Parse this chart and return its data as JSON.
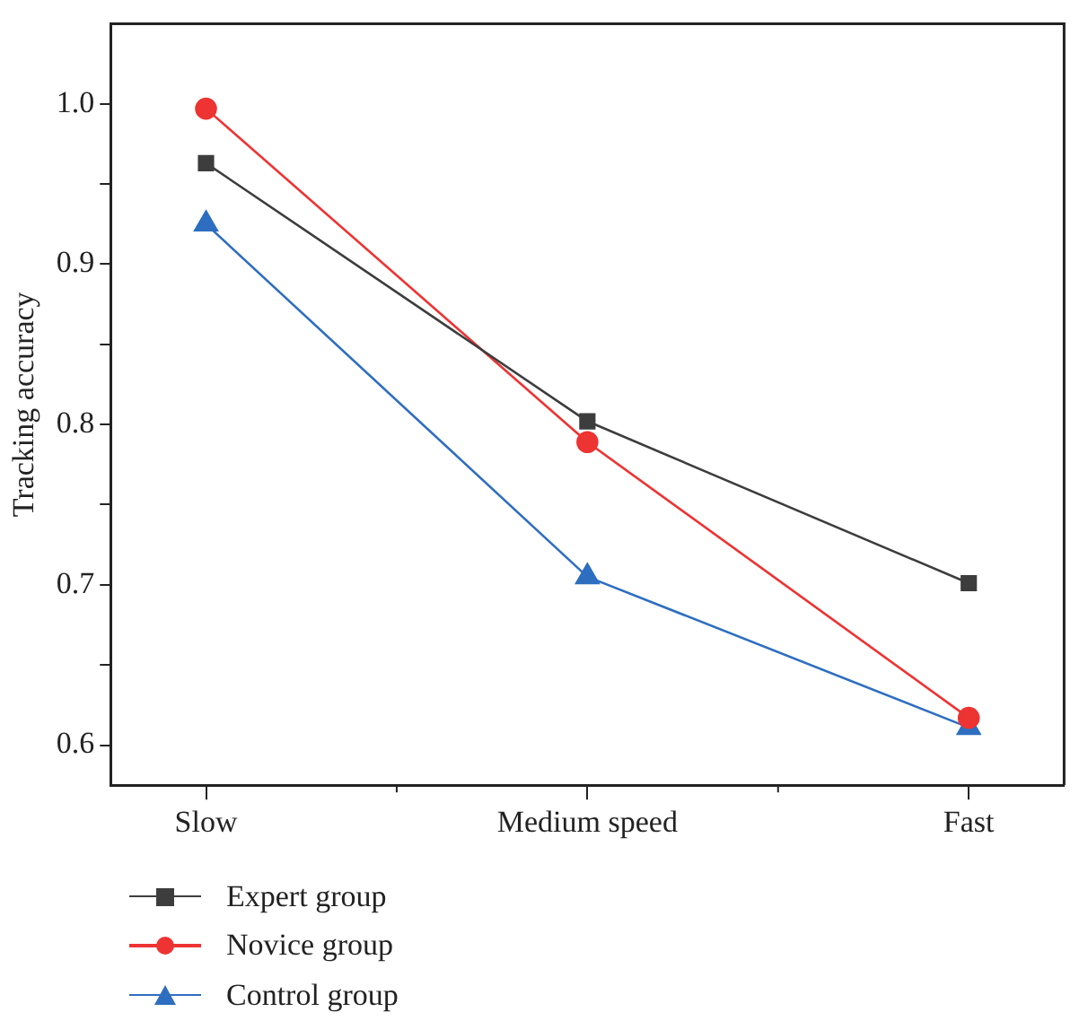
{
  "chart_data": {
    "type": "line",
    "ylabel": "Tracking accuracy",
    "categories": [
      "Slow",
      "Medium speed",
      "Fast"
    ],
    "series": [
      {
        "name": "Expert group",
        "color": "#3d3d3d",
        "marker": "square",
        "values": [
          0.963,
          0.802,
          0.701
        ]
      },
      {
        "name": "Novice group",
        "color": "#ee3333",
        "marker": "circle",
        "values": [
          0.997,
          0.789,
          0.617
        ]
      },
      {
        "name": "Control group",
        "color": "#2e6ec0",
        "marker": "triangle",
        "values": [
          0.925,
          0.705,
          0.611
        ]
      }
    ],
    "ylim": [
      0.575,
      1.05
    ],
    "yticks": [
      {
        "value": 0.6,
        "label": "0.6"
      },
      {
        "value": 0.65,
        "label": null
      },
      {
        "value": 0.7,
        "label": "0.7"
      },
      {
        "value": 0.75,
        "label": null
      },
      {
        "value": 0.8,
        "label": "0.8"
      },
      {
        "value": 0.85,
        "label": null
      },
      {
        "value": 0.9,
        "label": "0.9"
      },
      {
        "value": 0.95,
        "label": null
      },
      {
        "value": 1.0,
        "label": "1.0"
      }
    ],
    "grid": false,
    "legend": "bottom left",
    "line_style": "solid"
  }
}
